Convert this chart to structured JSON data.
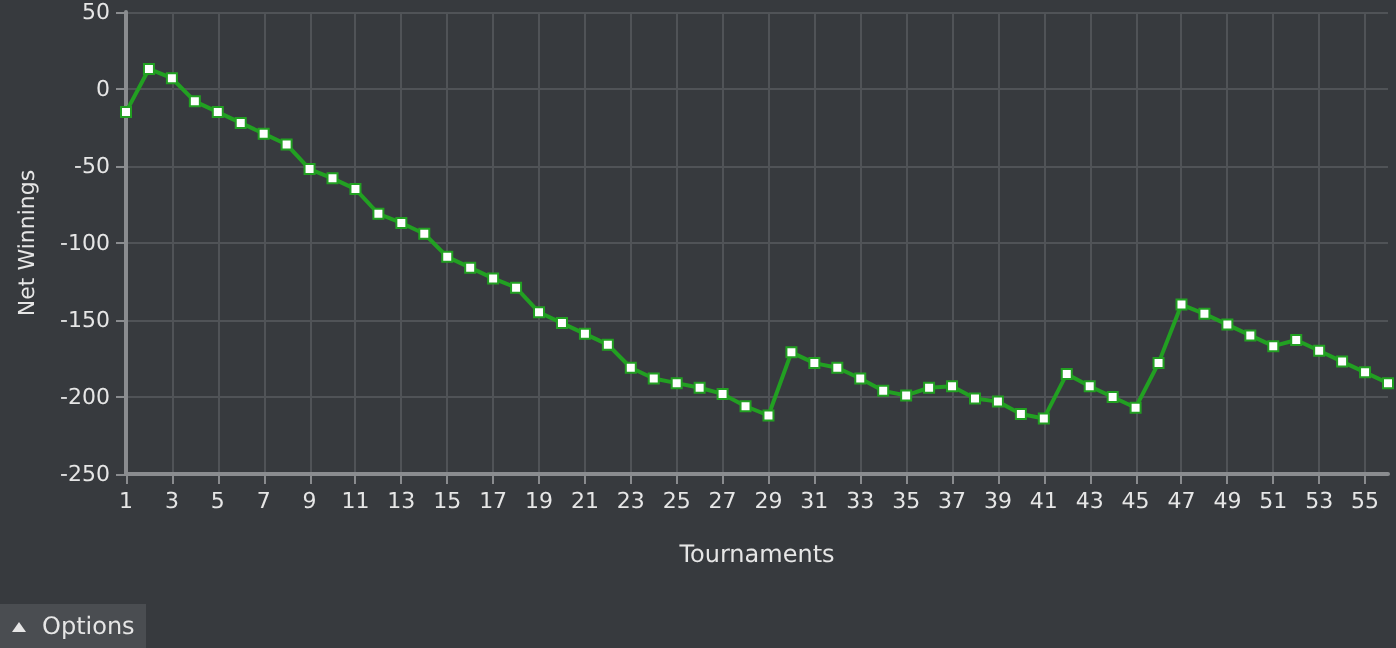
{
  "chart_data": {
    "type": "line",
    "xlabel": "Tournaments",
    "ylabel": "Net Winnings",
    "x": [
      1,
      2,
      3,
      4,
      5,
      6,
      7,
      8,
      9,
      10,
      11,
      12,
      13,
      14,
      15,
      16,
      17,
      18,
      19,
      20,
      21,
      22,
      23,
      24,
      25,
      26,
      27,
      28,
      29,
      30,
      31,
      32,
      33,
      34,
      35,
      36,
      37,
      38,
      39,
      40,
      41,
      42,
      43,
      44,
      45,
      46,
      47,
      48,
      49,
      50,
      51,
      52,
      53,
      54,
      55,
      56
    ],
    "series": [
      {
        "color": "#22a022",
        "values": [
          -15,
          13,
          7,
          -8,
          -15,
          -22,
          -29,
          -36,
          -52,
          -58,
          -65,
          -81,
          -87,
          -94,
          -109,
          -116,
          -123,
          -129,
          -145,
          -152,
          -159,
          -166,
          -181,
          -188,
          -191,
          -194,
          -198,
          -206,
          -212,
          -171,
          -178,
          -181,
          -188,
          -196,
          -199,
          -194,
          -193,
          -201,
          -203,
          -211,
          -214,
          -185,
          -193,
          -200,
          -207,
          -178,
          -140,
          -146,
          -153,
          -160,
          -167,
          -163,
          -170,
          -177,
          -184,
          -191
        ]
      }
    ],
    "xlim": [
      1,
      56
    ],
    "xticks": [
      1,
      3,
      5,
      7,
      9,
      11,
      13,
      15,
      17,
      19,
      21,
      23,
      25,
      27,
      29,
      31,
      33,
      35,
      37,
      39,
      41,
      43,
      45,
      47,
      49,
      51,
      53,
      55
    ],
    "ylim": [
      -250,
      50
    ],
    "yticks": [
      -250,
      -200,
      -150,
      -100,
      -50,
      0,
      50
    ],
    "grid": true,
    "marker": "square",
    "line_style": "solid",
    "annotations": [
      "Options"
    ]
  }
}
